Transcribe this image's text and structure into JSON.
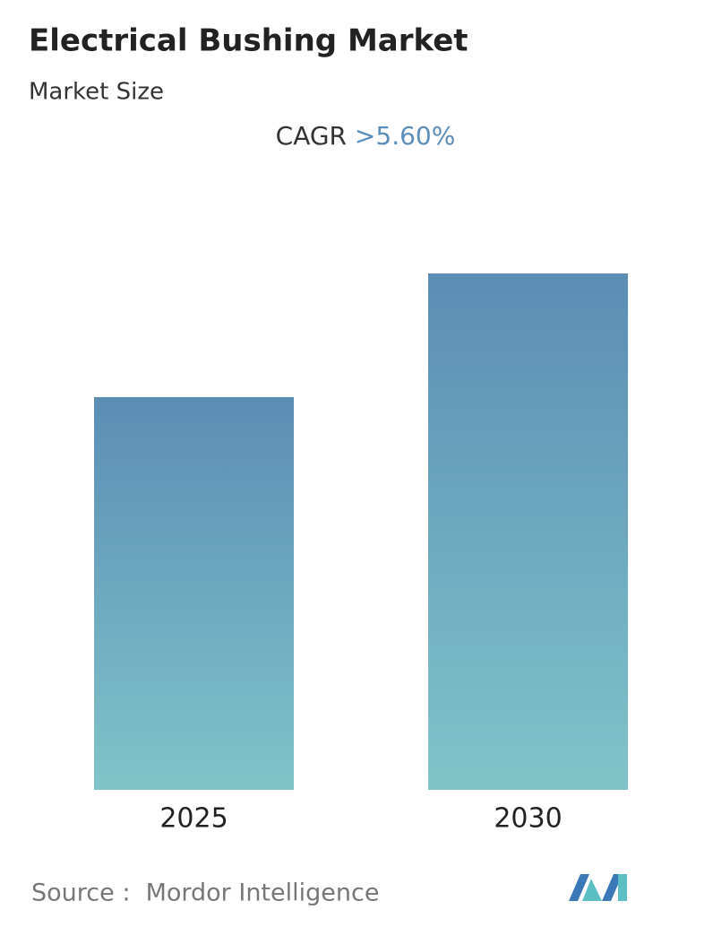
{
  "chart_data": {
    "type": "bar",
    "title": "Electrical Bushing Market",
    "subtitle": "Market Size",
    "cagr_label": "CAGR",
    "cagr_value": ">5.60%",
    "categories": [
      "2025",
      "2030"
    ],
    "values": [
      100,
      131.5
    ],
    "color_top": "#5b8db5",
    "color_bottom": "#80c4c9",
    "source": "Source :  Mordor Intelligence"
  }
}
